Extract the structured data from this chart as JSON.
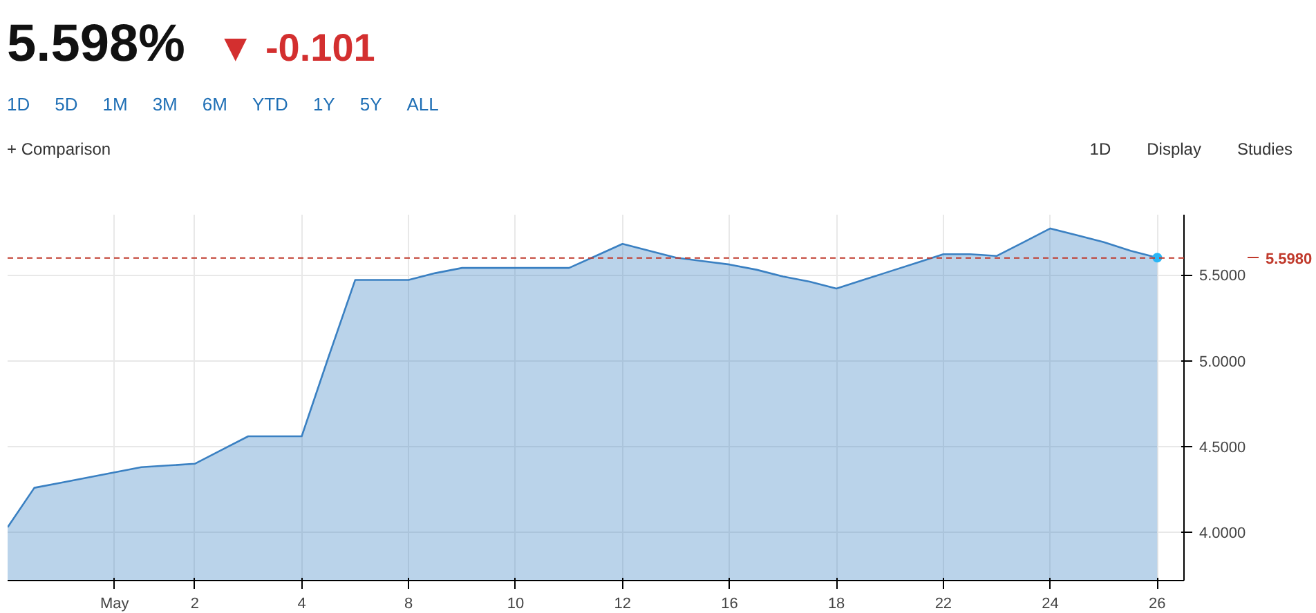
{
  "chart_data": {
    "type": "area",
    "title": "5.598%",
    "subtitle": "▼ -0.101",
    "annotations": [
      "1D",
      "5D",
      "1M",
      "3M",
      "6M",
      "YTD",
      "1Y",
      "5Y",
      "ALL",
      "+ Comparison",
      "1D",
      "Display",
      "Studies"
    ],
    "categories": [
      null,
      null,
      null,
      null,
      "May",
      null,
      null,
      "2",
      null,
      null,
      null,
      "4",
      null,
      null,
      null,
      "8",
      null,
      null,
      null,
      "10",
      null,
      null,
      null,
      "12",
      null,
      null,
      null,
      "16",
      null,
      null,
      null,
      "18",
      null,
      null,
      null,
      "22",
      null,
      null,
      null,
      "24",
      null,
      null,
      null,
      "26"
    ],
    "series": [
      {
        "color": "#3a80c2",
        "values": [
          4.03,
          4.26,
          4.29,
          4.32,
          4.35,
          4.38,
          4.39,
          4.4,
          4.48,
          4.56,
          4.56,
          4.56,
          5.02,
          5.47,
          5.47,
          5.47,
          5.51,
          5.54,
          5.54,
          5.54,
          5.54,
          5.54,
          5.61,
          5.68,
          5.64,
          5.6,
          5.58,
          5.56,
          5.53,
          5.49,
          5.46,
          5.42,
          5.47,
          5.52,
          5.57,
          5.62,
          5.62,
          5.61,
          5.69,
          5.77,
          5.73,
          5.69,
          5.64,
          5.6
        ]
      }
    ],
    "ylim": [
      3.72,
      5.85
    ],
    "yticks": [
      {
        "value": 4.0,
        "label": "4.0000"
      },
      {
        "value": 4.5,
        "label": "4.5000"
      },
      {
        "value": 5.0,
        "label": "5.0000"
      },
      {
        "value": 5.5,
        "label": "5.5000"
      }
    ],
    "ref_lines": [
      {
        "axis": "y",
        "value": 5.598,
        "label": "5.5980",
        "color": "#c0392b",
        "line_style": "dashed"
      }
    ],
    "grid": true
  }
}
